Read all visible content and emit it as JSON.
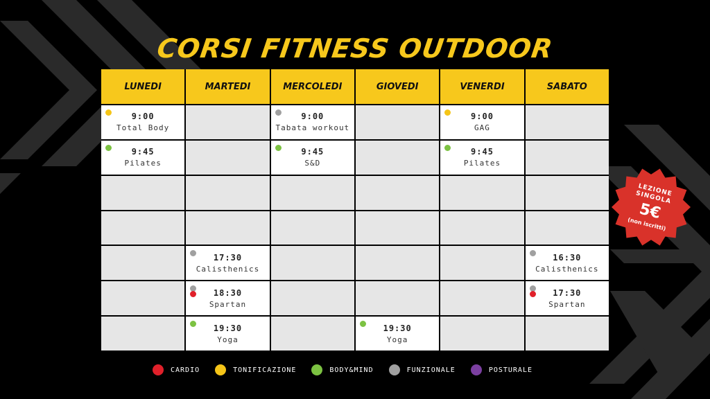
{
  "title": "CORSI FITNESS OUTDOOR",
  "days": [
    "LUNEDI",
    "MARTEDI",
    "MERCOLEDI",
    "GIOVEDI",
    "VENERDI",
    "SABATO"
  ],
  "colors": {
    "cardio": "#e0202a",
    "tonificazione": "#f5c518",
    "bodymind": "#7cc242",
    "funzionale": "#a0a0a0",
    "posturale": "#7b3fa0"
  },
  "schedule": [
    {
      "row": 1,
      "col": 1,
      "time": "9:00",
      "name": "Total Body",
      "dots": [
        "tonificazione"
      ]
    },
    {
      "row": 1,
      "col": 3,
      "time": "9:00",
      "name": "Tabata workout",
      "dots": [
        "funzionale"
      ]
    },
    {
      "row": 1,
      "col": 5,
      "time": "9:00",
      "name": "GAG",
      "dots": [
        "tonificazione"
      ]
    },
    {
      "row": 2,
      "col": 1,
      "time": "9:45",
      "name": "Pilates",
      "dots": [
        "bodymind"
      ]
    },
    {
      "row": 2,
      "col": 3,
      "time": "9:45",
      "name": "S&D",
      "dots": [
        "bodymind"
      ]
    },
    {
      "row": 2,
      "col": 5,
      "time": "9:45",
      "name": "Pilates",
      "dots": [
        "bodymind"
      ]
    },
    {
      "row": 5,
      "col": 2,
      "time": "17:30",
      "name": "Calisthenics",
      "dots": [
        "funzionale"
      ]
    },
    {
      "row": 5,
      "col": 6,
      "time": "16:30",
      "name": "Calisthenics",
      "dots": [
        "funzionale"
      ]
    },
    {
      "row": 6,
      "col": 2,
      "time": "18:30",
      "name": "Spartan",
      "dots": [
        "funzionale",
        "cardio"
      ]
    },
    {
      "row": 6,
      "col": 6,
      "time": "17:30",
      "name": "Spartan",
      "dots": [
        "funzionale",
        "cardio"
      ]
    },
    {
      "row": 7,
      "col": 2,
      "time": "19:30",
      "name": "Yoga",
      "dots": [
        "bodymind"
      ]
    },
    {
      "row": 7,
      "col": 4,
      "time": "19:30",
      "name": "Yoga",
      "dots": [
        "bodymind"
      ]
    }
  ],
  "legend": [
    {
      "key": "cardio",
      "label": "CARDIO"
    },
    {
      "key": "tonificazione",
      "label": "TONIFICAZIONE"
    },
    {
      "key": "bodymind",
      "label": "BODY&MIND"
    },
    {
      "key": "funzionale",
      "label": "FUNZIONALE"
    },
    {
      "key": "posturale",
      "label": "POSTURALE"
    }
  ],
  "badge": {
    "line1": "LEZIONE",
    "line2": "SINGOLA",
    "price": "5€",
    "note": "(non iscritti)",
    "color": "#d9322a"
  }
}
